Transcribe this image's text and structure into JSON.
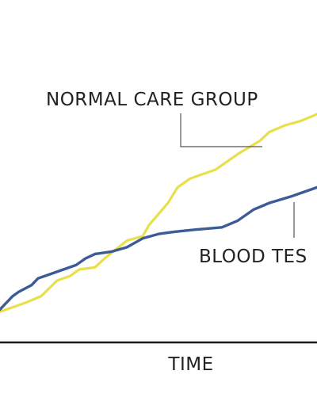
{
  "chart_data": {
    "type": "line",
    "xlabel": "TIME",
    "ylabel": "",
    "grid": false,
    "legend": "none",
    "series": [
      {
        "name": "NORMAL CARE GROUP",
        "color": "#E8E04A",
        "x": [
          0,
          4,
          8,
          13,
          18,
          22,
          25,
          30,
          33,
          40,
          45,
          47,
          50,
          53,
          56,
          60,
          68,
          75,
          82,
          85,
          90,
          95,
          100
        ],
        "y": [
          6,
          8,
          10,
          13,
          20,
          22,
          25,
          26,
          30,
          38,
          40,
          45,
          50,
          55,
          62,
          66,
          70,
          77,
          83,
          87,
          90,
          92,
          95
        ]
      },
      {
        "name": "BLOOD TES",
        "color": "#3D5A99",
        "x": [
          0,
          2,
          4,
          6,
          10,
          12,
          16,
          20,
          24,
          27,
          30,
          35,
          40,
          45,
          50,
          55,
          62,
          70,
          75,
          80,
          85,
          92,
          96,
          100
        ],
        "y": [
          7,
          10,
          13,
          15,
          18,
          21,
          23,
          25,
          27,
          30,
          32,
          33,
          35,
          39,
          41,
          42,
          43,
          44,
          47,
          52,
          55,
          58,
          60,
          62
        ]
      }
    ],
    "annotations": [
      {
        "text": "NORMAL CARE GROUP",
        "series": 0
      },
      {
        "text": "BLOOD TES",
        "series": 1
      }
    ]
  }
}
